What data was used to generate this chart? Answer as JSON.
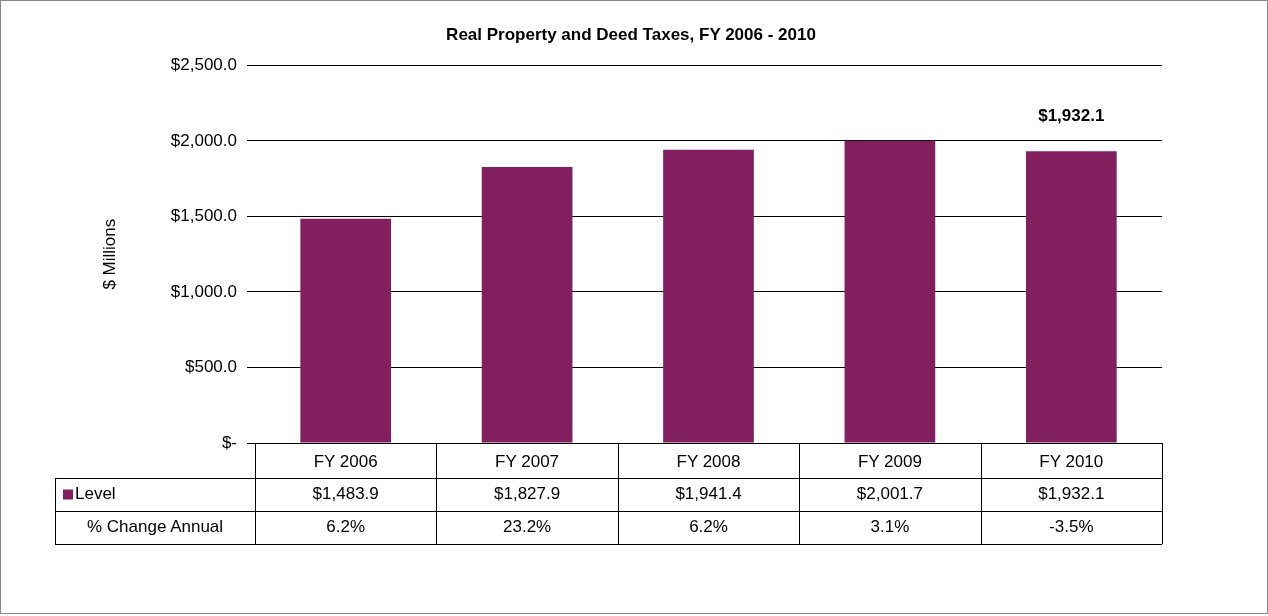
{
  "chart_data": {
    "type": "bar",
    "title": "Real Property and Deed Taxes, FY 2006 - 2010",
    "ylabel": "$ Millions",
    "categories": [
      "FY 2006",
      "FY 2007",
      "FY 2008",
      "FY 2009",
      "FY 2010"
    ],
    "series": [
      {
        "name": "Level",
        "color": "#82205f",
        "values": [
          1483.9,
          1827.9,
          1941.4,
          2001.7,
          1932.1
        ],
        "value_labels": [
          "$1,483.9",
          "$1,827.9",
          "$1,941.4",
          "$2,001.7",
          "$1,932.1"
        ]
      }
    ],
    "ylim": [
      0,
      2500
    ],
    "yticks": [
      {
        "value": 0,
        "label": "$-"
      },
      {
        "value": 500,
        "label": "$500.0"
      },
      {
        "value": 1000,
        "label": "$1,000.0"
      },
      {
        "value": 1500,
        "label": "$1,500.0"
      },
      {
        "value": 2000,
        "label": "$2,000.0"
      },
      {
        "value": 2500,
        "label": "$2,500.0"
      }
    ],
    "grid": "y",
    "legend": "bottom left",
    "annotations": [
      {
        "text": "$1,932.1",
        "x": "FY 2010",
        "y": 1932.1
      },
      "% Change Annual",
      "6.2%",
      "23.2%",
      "6.2%",
      "3.1%",
      "-3.5%"
    ]
  }
}
